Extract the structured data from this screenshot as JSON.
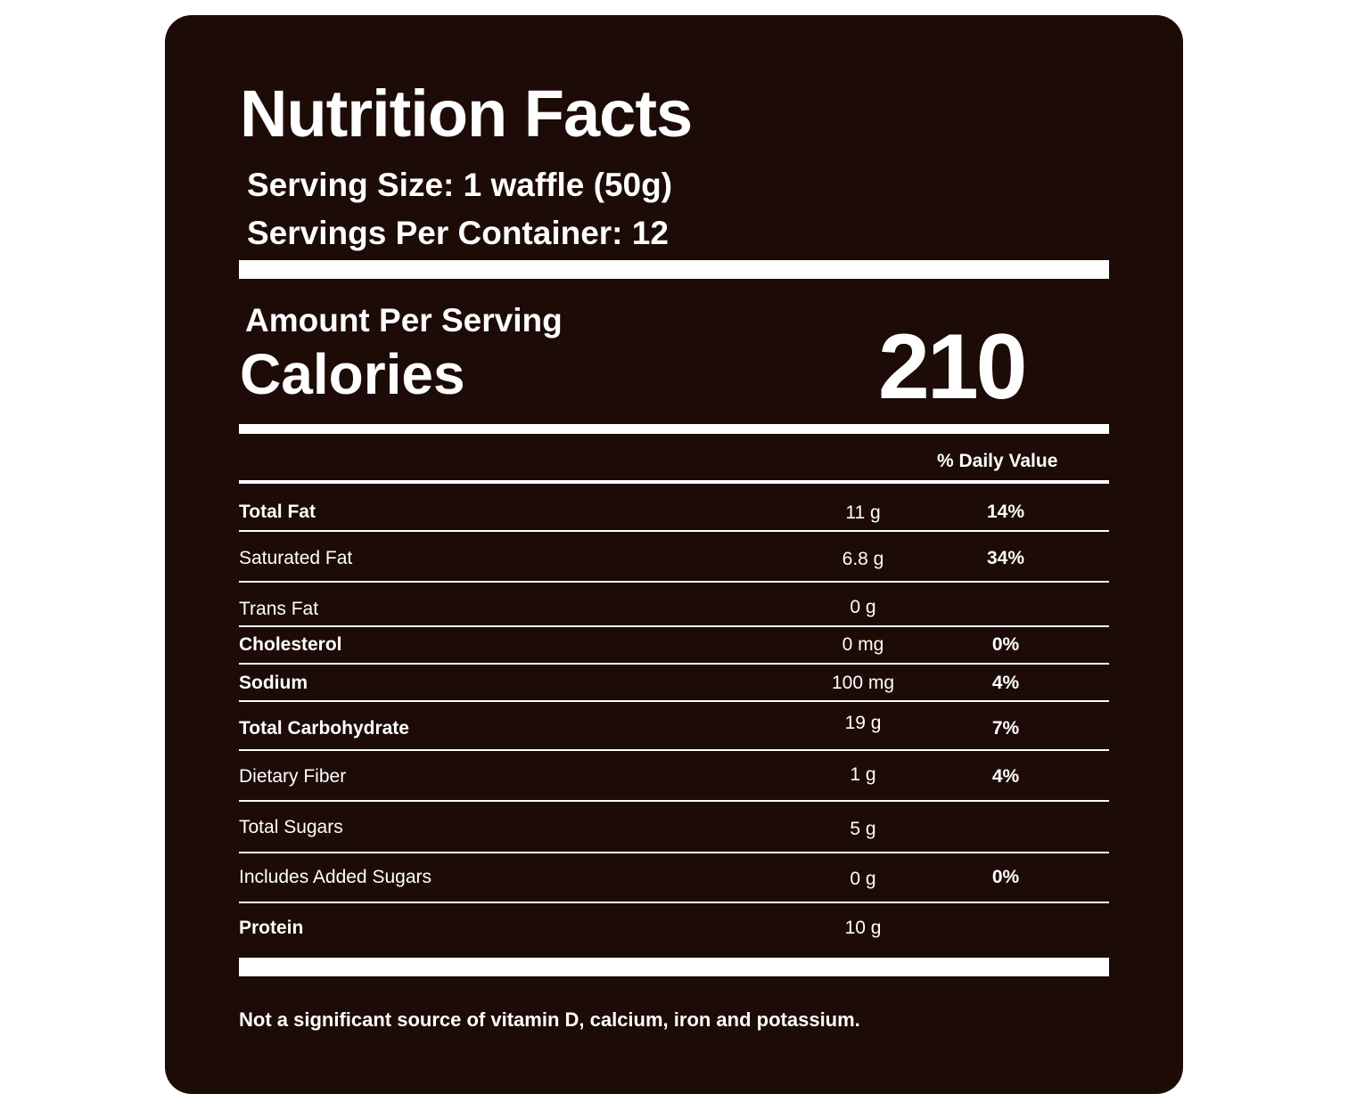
{
  "label": {
    "title": "Nutrition Facts",
    "serving_size": "Serving Size: 1 waffle (50g)",
    "servings_per_container": "Servings Per Container: 12",
    "amount_per_serving": "Amount Per Serving",
    "calories_label": "Calories",
    "calories_value": "210",
    "daily_value_header": "% Daily Value",
    "rows": [
      {
        "name": "Total Fat",
        "amount": "11 g",
        "daily_value": "14%",
        "bold": true
      },
      {
        "name": "Saturated Fat",
        "amount": "6.8 g",
        "daily_value": "34%",
        "bold": false
      },
      {
        "name": "Trans Fat",
        "amount": "0 g",
        "daily_value": "",
        "bold": false
      },
      {
        "name": "Cholesterol",
        "amount": "0 mg",
        "daily_value": "0%",
        "bold": true
      },
      {
        "name": "Sodium",
        "amount": "100 mg",
        "daily_value": "4%",
        "bold": true
      },
      {
        "name": "Total Carbohydrate",
        "amount": "19 g",
        "daily_value": "7%",
        "bold": true
      },
      {
        "name": "Dietary Fiber",
        "amount": "1 g",
        "daily_value": "4%",
        "bold": false
      },
      {
        "name": "Total Sugars",
        "amount": "5 g",
        "daily_value": "",
        "bold": false
      },
      {
        "name": "Includes Added Sugars",
        "amount": "0 g",
        "daily_value": "0%",
        "bold": false
      },
      {
        "name": "Protein",
        "amount": "10 g",
        "daily_value": "",
        "bold": true
      }
    ],
    "footnote": "Not a significant source of vitamin D, calcium, iron and potassium."
  },
  "colors": {
    "panel_background": "#1c0b06",
    "text": "#ffffff",
    "page_background": "#ffffff"
  }
}
